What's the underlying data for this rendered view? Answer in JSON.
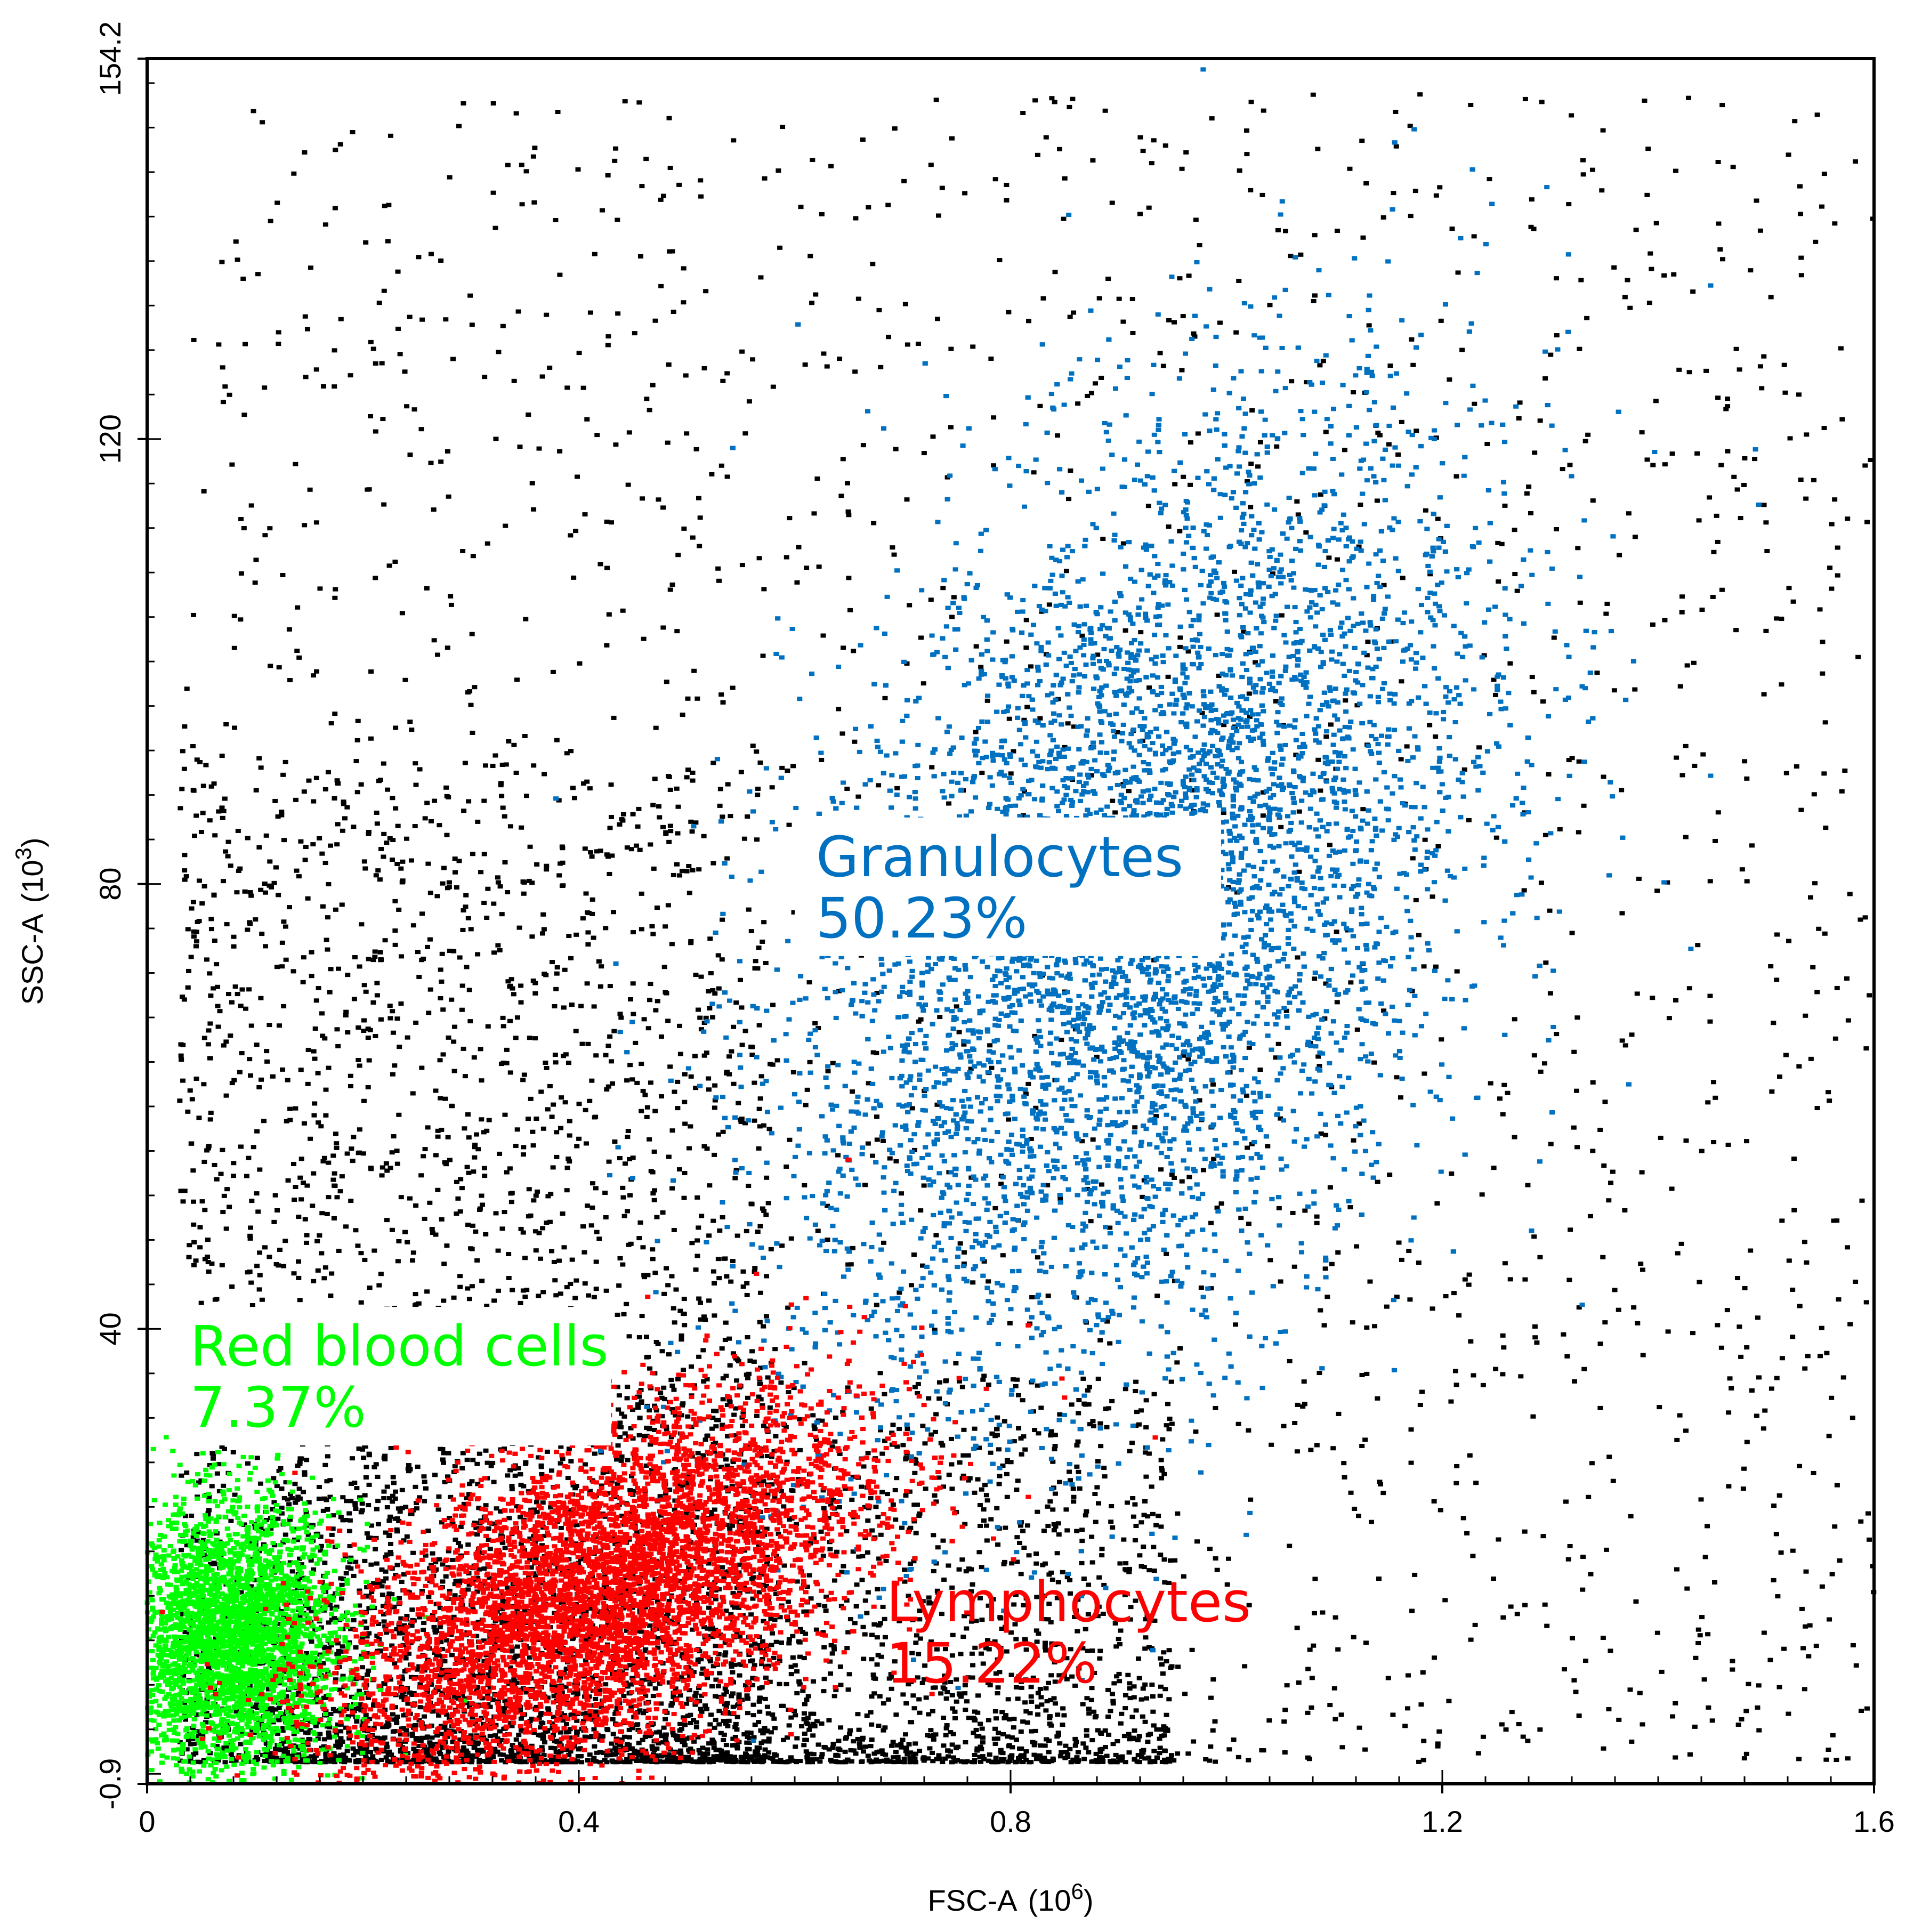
{
  "chart_data": {
    "type": "scatter",
    "title": "",
    "xlabel": "FSC-A",
    "xlabel_unit": "(10",
    "xlabel_exp": "6",
    "xlabel_close": ")",
    "ylabel": "SSC-A",
    "ylabel_unit": "(10",
    "ylabel_exp": "3",
    "ylabel_close": ")",
    "xlim": [
      0,
      1.6
    ],
    "ylim": [
      -0.9,
      154.2
    ],
    "xticks": [
      {
        "value": 0,
        "label": "0"
      },
      {
        "value": 0.4,
        "label": "0.4"
      },
      {
        "value": 0.8,
        "label": "0.8"
      },
      {
        "value": 1.2,
        "label": "1.2"
      },
      {
        "value": 1.6,
        "label": "1.6"
      }
    ],
    "yticks": [
      {
        "value": -0.9,
        "label": "-0.9"
      },
      {
        "value": 40,
        "label": "40"
      },
      {
        "value": 80,
        "label": "80"
      },
      {
        "value": 120,
        "label": "120"
      },
      {
        "value": 154.2,
        "label": "154.2"
      }
    ],
    "grid": false,
    "legend": "none",
    "populations": [
      {
        "name": "Granulocytes",
        "percent": "50.23%",
        "color": "#0070c0",
        "center": [
          0.92,
          78
        ],
        "spread": [
          0.16,
          20
        ],
        "density": "high",
        "label_at": [
          0.6,
          74
        ]
      },
      {
        "name": "Red blood cells",
        "percent": "7.37%",
        "color": "#00ff00",
        "center": [
          0.08,
          12
        ],
        "spread": [
          0.05,
          6
        ],
        "density": "high",
        "label_at": [
          0.02,
          30
        ]
      },
      {
        "name": "Lymphocytes",
        "percent": "15.22%",
        "color": "#ff0000",
        "center": [
          0.42,
          16
        ],
        "spread": [
          0.12,
          7
        ],
        "density": "high",
        "label_at": [
          0.665,
          7
        ]
      }
    ],
    "ungated": {
      "color": "#000000"
    }
  }
}
